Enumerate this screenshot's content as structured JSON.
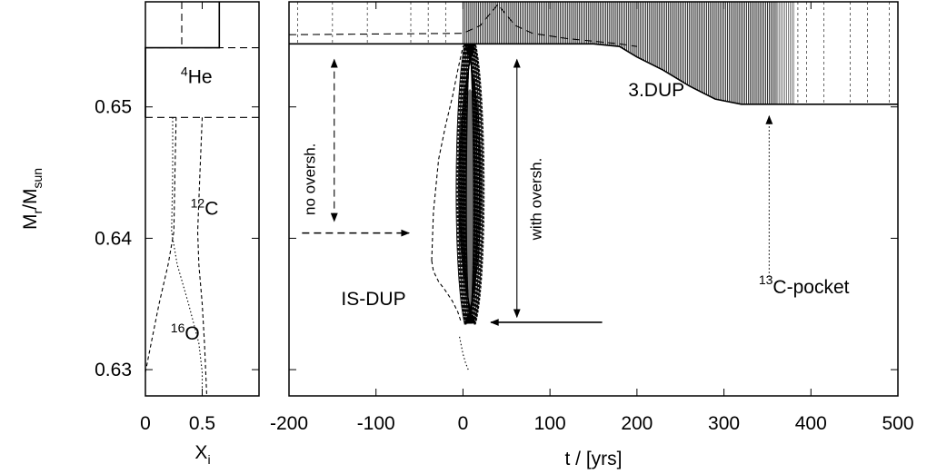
{
  "chart_data": [
    {
      "type": "line",
      "panel": "abundance-profile",
      "xlabel": "X",
      "xlabel_sub": "i",
      "ylabel": "M",
      "ylabel_sub1": "r",
      "ylabel_mid": "/M",
      "ylabel_sub2": "sun",
      "xlim": [
        0,
        1
      ],
      "ylim": [
        0.628,
        0.658
      ],
      "x_ticks": [
        0,
        0.5
      ],
      "x_tick_labels": [
        "0",
        "0.5"
      ],
      "y_ticks": [
        0.63,
        0.64,
        0.65
      ],
      "y_tick_labels": [
        "0.63",
        "0.64",
        "0.65"
      ],
      "grid": false,
      "annotations": [
        {
          "id": "he4",
          "sup": "4",
          "text": "He",
          "x": 0.45,
          "y": 0.6518
        },
        {
          "id": "c12",
          "sup": "12",
          "text": "C",
          "x": 0.52,
          "y": 0.6418
        },
        {
          "id": "o16",
          "sup": "16",
          "text": "O",
          "x": 0.35,
          "y": 0.6323
        }
      ],
      "series": [
        {
          "id": "he4-profile",
          "dash": "solid",
          "x": [
            0.65,
            0.65,
            0.0,
            0.0
          ],
          "y": [
            0.658,
            0.6545,
            0.6545,
            0.6492
          ]
        },
        {
          "id": "boundary-top",
          "dash": "dashed",
          "x": [
            0.0,
            1.0
          ],
          "y": [
            0.6545,
            0.6545
          ]
        },
        {
          "id": "boundary-mid",
          "dash": "dashed",
          "x": [
            0.0,
            1.0
          ],
          "y": [
            0.6492,
            0.6492
          ]
        },
        {
          "id": "env-line",
          "dash": "dashed",
          "x": [
            0.32,
            0.32
          ],
          "y": [
            0.658,
            0.6545
          ]
        },
        {
          "id": "c12-profile",
          "dash": "short-dash",
          "x": [
            0.27,
            0.26,
            0.25,
            0.2,
            0.12,
            0.05,
            0.0
          ],
          "y": [
            0.6492,
            0.645,
            0.6405,
            0.638,
            0.635,
            0.632,
            0.6298
          ]
        },
        {
          "id": "o16-profile",
          "dash": "dotted",
          "x": [
            0.24,
            0.24,
            0.23,
            0.28,
            0.38,
            0.47,
            0.5,
            0.5
          ],
          "y": [
            0.6492,
            0.645,
            0.6405,
            0.638,
            0.635,
            0.632,
            0.6298,
            0.628
          ]
        },
        {
          "id": "c12-upper",
          "dash": "short-dash",
          "x": [
            0.5,
            0.48,
            0.46,
            0.47,
            0.5,
            0.52,
            0.54
          ],
          "y": [
            0.6492,
            0.645,
            0.6405,
            0.638,
            0.635,
            0.632,
            0.628
          ]
        }
      ]
    },
    {
      "type": "line",
      "panel": "kippenhahn",
      "xlabel": "t / [yrs]",
      "xlim": [
        -200,
        500
      ],
      "ylim": [
        0.628,
        0.658
      ],
      "x_ticks": [
        -200,
        -100,
        0,
        100,
        200,
        300,
        400,
        500
      ],
      "x_tick_labels": [
        "-200",
        "-100",
        "0",
        "100",
        "200",
        "300",
        "400",
        "500"
      ],
      "grid": false,
      "annotations": [
        {
          "id": "no-oversh",
          "text": "no oversh.",
          "rotate": -90,
          "x": -170,
          "y": 0.6445
        },
        {
          "id": "with-oversh",
          "text": "with oversh.",
          "rotate": -90,
          "x": 90,
          "y": 0.643
        },
        {
          "id": "is-dup",
          "text": "IS-DUP",
          "x": -140,
          "y": 0.6349
        },
        {
          "id": "third-dup",
          "text": "3.DUP",
          "x": 190,
          "y": 0.6508
        },
        {
          "id": "c13-pocket",
          "sup": "13",
          "text": "C-pocket",
          "x": 340,
          "y": 0.6358
        }
      ],
      "arrows": [
        {
          "id": "no-oversh-arrow",
          "dash": "dashed",
          "two_way": true,
          "x1": -148,
          "y1": 0.6536,
          "x2": -148,
          "y2": 0.6413
        },
        {
          "id": "with-oversh-arrow",
          "dash": "solid",
          "two_way": true,
          "x1": 62,
          "y1": 0.6536,
          "x2": 62,
          "y2": 0.634
        },
        {
          "id": "left-horizontal-arrow",
          "dash": "dashed",
          "x1": -185,
          "y1": 0.6404,
          "x2": -62,
          "y2": 0.6404
        },
        {
          "id": "right-horizontal-arrow",
          "dash": "solid",
          "x1": 160,
          "y1": 0.6336,
          "x2": 32,
          "y2": 0.6336
        },
        {
          "id": "pocket-arrow",
          "dash": "dotted",
          "x1": 352,
          "y1": 0.6368,
          "x2": 352,
          "y2": 0.6493
        }
      ],
      "series": [
        {
          "id": "h-free-core-boundary",
          "dash": "solid",
          "x": [
            -200,
            0,
            150,
            180,
            200,
            230,
            260,
            290,
            320,
            350,
            380,
            500
          ],
          "y": [
            0.6548,
            0.6548,
            0.6548,
            0.6546,
            0.6538,
            0.6528,
            0.6516,
            0.6506,
            0.6502,
            0.6502,
            0.6502,
            0.6502
          ]
        },
        {
          "id": "convective-envelope-edge",
          "dash": "dashed",
          "x": [
            -200,
            0,
            20,
            30,
            40,
            50,
            60,
            80,
            120,
            180,
            200
          ],
          "y": [
            0.6555,
            0.6556,
            0.6562,
            0.657,
            0.6578,
            0.657,
            0.6562,
            0.6556,
            0.6552,
            0.6548,
            0.6546
          ]
        },
        {
          "id": "pulse-envelope-left",
          "dash": "short-dash",
          "x": [
            -36,
            -34,
            -28,
            -20,
            -12,
            -6,
            -2,
            0,
            4
          ],
          "y": [
            0.6383,
            0.642,
            0.646,
            0.6486,
            0.6508,
            0.6528,
            0.654,
            0.6546,
            0.6549
          ]
        },
        {
          "id": "pulse-envelope-lower",
          "dash": "short-dash",
          "x": [
            -36,
            -34,
            -28,
            -20,
            -12,
            -6,
            -2
          ],
          "y": [
            0.6383,
            0.6375,
            0.6367,
            0.636,
            0.6352,
            0.6344,
            0.6336
          ]
        },
        {
          "id": "pulse-tail",
          "dash": "dotted",
          "x": [
            -4,
            0,
            3,
            6
          ],
          "y": [
            0.6325,
            0.6312,
            0.6305,
            0.63
          ]
        }
      ]
    }
  ]
}
